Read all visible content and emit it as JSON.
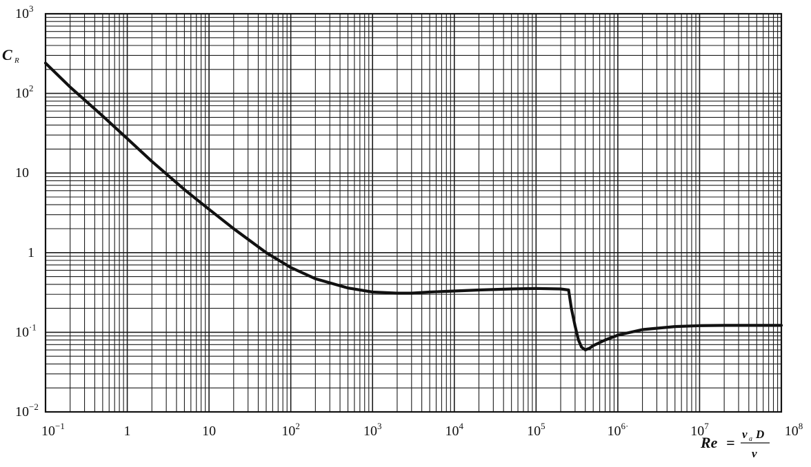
{
  "chart_data": {
    "type": "line",
    "title": "",
    "x_scale": "log",
    "y_scale": "log",
    "xlim": [
      0.1,
      100000000
    ],
    "ylim": [
      0.01,
      1000
    ],
    "grid": true,
    "x_tick_values": [
      0.1,
      1,
      10,
      100,
      1000,
      10000,
      100000,
      1000000,
      10000000,
      100000000
    ],
    "x_tick_labels": [
      {
        "base": "10",
        "sup": "−1"
      },
      {
        "base": "1",
        "sup": ""
      },
      {
        "base": "10",
        "sup": ""
      },
      {
        "base": "10",
        "sup": "2"
      },
      {
        "base": "10",
        "sup": "3"
      },
      {
        "base": "10",
        "sup": "4"
      },
      {
        "base": "10",
        "sup": "5"
      },
      {
        "base": "10",
        "sup": "6·"
      },
      {
        "base": "10",
        "sup": "7"
      },
      {
        "base": "10",
        "sup": "8"
      }
    ],
    "y_tick_values": [
      0.01,
      0.1,
      1,
      10,
      100,
      1000
    ],
    "y_tick_labels": [
      {
        "base": "10",
        "sup": "−2"
      },
      {
        "base": "10",
        "sup": "·1"
      },
      {
        "base": "1",
        "sup": ""
      },
      {
        "base": "10",
        "sup": ""
      },
      {
        "base": "10",
        "sup": "2"
      },
      {
        "base": "10",
        "sup": "3"
      }
    ],
    "ylabel": {
      "main": "C",
      "sub": "R"
    },
    "xlabel": {
      "lhs": "Re",
      "eq": "=",
      "num_v": "v",
      "num_sub": "a",
      "num_D": "D",
      "den": "ν"
    },
    "series": [
      {
        "color": "#111111",
        "x": [
          0.1,
          0.2,
          0.5,
          1,
          2,
          5,
          10,
          20,
          50,
          100,
          200,
          500,
          1000,
          2000,
          3000,
          5000,
          10000,
          20000,
          50000,
          100000,
          200000,
          250000,
          270000,
          300000,
          330000,
          360000,
          400000,
          450000,
          500000,
          700000,
          1000000,
          2000000,
          5000000,
          10000000,
          20000000,
          50000000,
          100000000
        ],
        "y": [
          240,
          120,
          52,
          27,
          14,
          6.2,
          3.5,
          2.0,
          1.0,
          0.65,
          0.47,
          0.36,
          0.32,
          0.31,
          0.31,
          0.32,
          0.33,
          0.34,
          0.35,
          0.355,
          0.35,
          0.34,
          0.2,
          0.12,
          0.08,
          0.065,
          0.06,
          0.063,
          0.068,
          0.08,
          0.092,
          0.108,
          0.118,
          0.121,
          0.122,
          0.122,
          0.122
        ]
      }
    ]
  }
}
